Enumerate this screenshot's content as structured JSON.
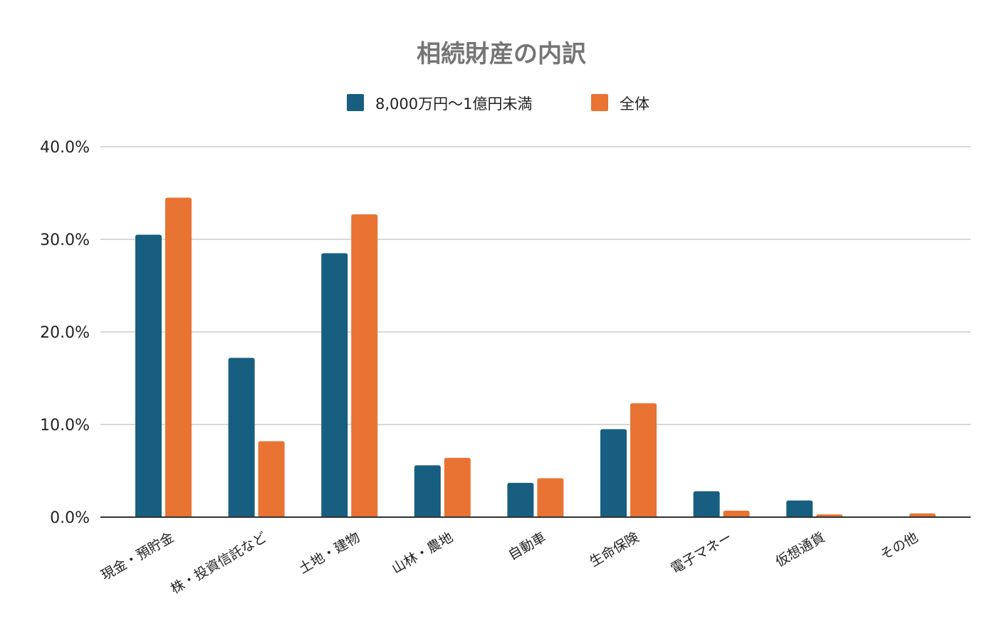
{
  "chart_data": {
    "type": "bar",
    "title": "相続財産の内訳",
    "xlabel": "",
    "ylabel": "",
    "categories": [
      "現金・預貯金",
      "株・投資信託など",
      "土地・建物",
      "山林・農地",
      "自動車",
      "生命保険",
      "電子マネー",
      "仮想通貨",
      "その他"
    ],
    "series": [
      {
        "name": "8,000万円〜1億円未満",
        "color": "#175e80",
        "values": [
          30.5,
          17.2,
          28.5,
          5.6,
          3.7,
          9.5,
          2.8,
          1.8,
          0
        ]
      },
      {
        "name": "全体",
        "color": "#e97333",
        "values": [
          34.5,
          8.2,
          32.7,
          6.4,
          4.2,
          12.3,
          0.7,
          0.3,
          0.4
        ]
      }
    ],
    "ylim": [
      0,
      40
    ],
    "yticks": [
      "0.0%",
      "10.0%",
      "20.0%",
      "30.0%",
      "40.0%"
    ],
    "ytick_values": [
      0,
      10,
      20,
      30,
      40
    ],
    "grid": true,
    "legend_position": "top-center"
  }
}
